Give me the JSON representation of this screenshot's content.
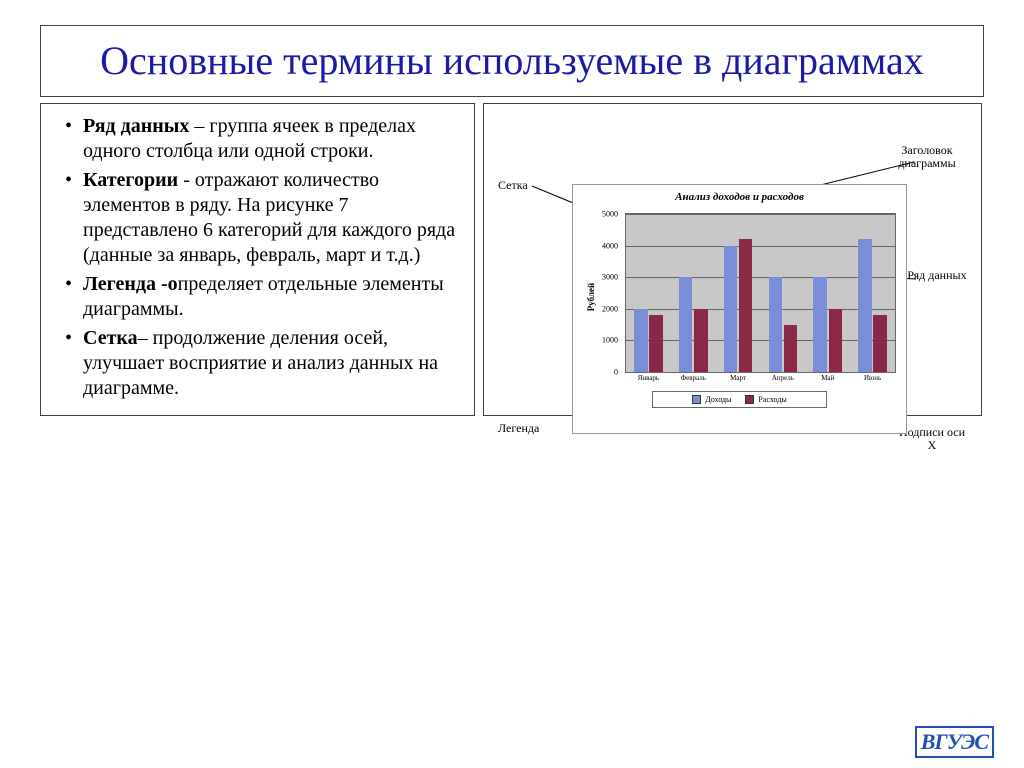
{
  "slide": {
    "title": "Основные термины используемые в диаграммах",
    "title_color": "#1a1aa8",
    "border_color": "#404040",
    "bullets": [
      {
        "term": "Ряд данных",
        "text": " – группа ячеек в пределах одного столбца или одной строки."
      },
      {
        "term": "Категории",
        "text": " - отражают количество элементов в ряду. На рисунке 7 представлено 6 категорий для каждого ряда (данные за январь, февраль, март и т.д.)"
      },
      {
        "term": "Легенда -о",
        "text": "пределяет отдельные элементы диаграммы."
      },
      {
        "term": "Сетка",
        "text": "– продолжение деления осей, улучшает восприятие и анализ данных на диаграмме."
      }
    ]
  },
  "callouts": {
    "grid": "Сетка",
    "title": "Заголовок диаграммы",
    "series": "Ряд данных",
    "legend": "Легенда",
    "xaxis": "Подписи оси X"
  },
  "chart": {
    "type": "bar",
    "title": "Анализ доходов и расходов",
    "ylabel": "Рублей",
    "ylim": [
      0,
      5000
    ],
    "ytick_step": 1000,
    "yticks": [
      0,
      1000,
      2000,
      3000,
      4000,
      5000
    ],
    "categories": [
      "Январь",
      "Февраль",
      "Март",
      "Апрель",
      "Май",
      "Июнь"
    ],
    "series": [
      {
        "name": "Доходы",
        "color": "#7a8ed8",
        "values": [
          2000,
          3000,
          4000,
          3000,
          3000,
          4200
        ]
      },
      {
        "name": "Расходы",
        "color": "#8a2846",
        "values": [
          1800,
          2000,
          4200,
          1500,
          2000,
          1800
        ]
      }
    ],
    "plot_bg": "#c8c8c8",
    "grid_color": "#666666",
    "title_fontsize": 11,
    "label_fontsize": 9,
    "tick_fontsize": 8
  },
  "logo": "ВГУЭС"
}
